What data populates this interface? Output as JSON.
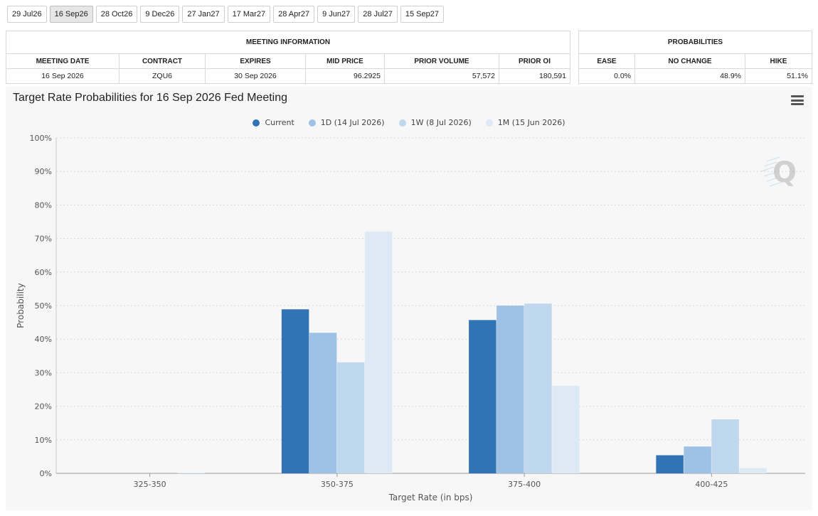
{
  "tabs": [
    "29 Jul26",
    "16 Sep26",
    "28 Oct26",
    "9 Dec26",
    "27 Jan27",
    "17 Mar27",
    "28 Apr27",
    "9 Jun27",
    "28 Jul27",
    "15 Sep27"
  ],
  "active_tab": "16 Sep26",
  "meeting_info": {
    "header": "MEETING INFORMATION",
    "columns": [
      "MEETING DATE",
      "CONTRACT",
      "EXPIRES",
      "MID PRICE",
      "PRIOR VOLUME",
      "PRIOR OI"
    ],
    "row": [
      "16 Sep 2026",
      "ZQU6",
      "30 Sep 2026",
      "96.2925",
      "57,572",
      "180,591"
    ]
  },
  "probabilities": {
    "header": "PROBABILITIES",
    "columns": [
      "EASE",
      "NO CHANGE",
      "HIKE"
    ],
    "row": [
      "0.0%",
      "48.9%",
      "51.1%"
    ]
  },
  "chart_data": {
    "type": "bar",
    "title": "Target Rate Probabilities for 16 Sep 2026 Fed Meeting",
    "xlabel": "Target Rate (in bps)",
    "ylabel": "Probability",
    "categories": [
      "325-350",
      "350-375",
      "375-400",
      "400-425"
    ],
    "y_ticks": [
      "0%",
      "10%",
      "20%",
      "30%",
      "40%",
      "50%",
      "60%",
      "70%",
      "80%",
      "90%",
      "100%"
    ],
    "ylim": [
      0,
      100
    ],
    "grid": true,
    "legend_position": "top",
    "series": [
      {
        "name": "Current",
        "color": "#3174b5",
        "values": [
          0.0,
          48.9,
          45.7,
          5.4
        ]
      },
      {
        "name": "1D (14 Jul 2026)",
        "color": "#9ec2e6",
        "values": [
          0.0,
          41.9,
          50.0,
          8.0
        ]
      },
      {
        "name": "1W (8 Jul 2026)",
        "color": "#bfd8ed",
        "values": [
          0.0,
          33.1,
          50.6,
          16.1
        ]
      },
      {
        "name": "1M (15 Jun 2026)",
        "color": "#ddeaf6",
        "values": [
          0.2,
          72.1,
          26.1,
          1.6
        ]
      }
    ]
  }
}
